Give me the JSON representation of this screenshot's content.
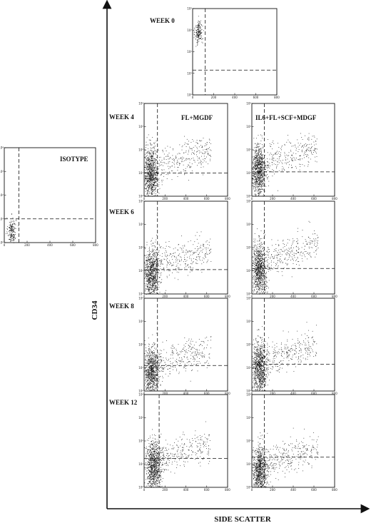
{
  "chart_data": {
    "type": "scatter",
    "axes": {
      "xlabel": "SIDE SCATTER",
      "ylabel": "CD34"
    },
    "x_ticks": [
      "0",
      "200",
      "400",
      "600",
      "800"
    ],
    "y_ticks": [
      "10⁰",
      "10¹",
      "10²",
      "10³",
      "10⁴"
    ],
    "xlim": [
      0,
      1000
    ],
    "ylim_log10": [
      0,
      4
    ],
    "columns": [
      "FL+MGDF",
      "IL6+FL+SCF+MDGF"
    ],
    "panels": [
      {
        "id": "isotype",
        "label": "ISOTYPE",
        "gate_x": 160,
        "gate_y_log": 1.0,
        "cluster": {
          "x_center": 80,
          "y_center_log": 0.5,
          "spread": "tight"
        }
      },
      {
        "id": "week0",
        "label": "WEEK 0",
        "gate_x": 150,
        "gate_y_log": 1.15,
        "cluster": {
          "x_center": 70,
          "y_center_log": 2.9,
          "spread": "tight"
        }
      },
      {
        "id": "week4-fl-mgdf",
        "label": "WEEK 4",
        "column": "FL+MGDF",
        "gate_x": 160,
        "gate_y_log": 1.0,
        "cluster": {
          "x_center": 80,
          "y_center_log": 1.0,
          "spread": "broad"
        }
      },
      {
        "id": "week4-il6",
        "column": "IL6+FL+SCF+MDGF",
        "gate_x": 150,
        "gate_y_log": 1.05,
        "cluster": {
          "x_center": 80,
          "y_center_log": 1.1,
          "spread": "broad"
        }
      },
      {
        "id": "week6-fl-mgdf",
        "label": "WEEK 6",
        "column": "FL+MGDF",
        "gate_x": 160,
        "gate_y_log": 1.05,
        "cluster": {
          "x_center": 90,
          "y_center_log": 0.9,
          "spread": "broad"
        }
      },
      {
        "id": "week6-il6",
        "column": "IL6+FL+SCF+MDGF",
        "gate_x": 150,
        "gate_y_log": 1.1,
        "cluster": {
          "x_center": 90,
          "y_center_log": 1.1,
          "spread": "broad"
        }
      },
      {
        "id": "week8-fl-mgdf",
        "label": "WEEK 8",
        "column": "FL+MGDF",
        "gate_x": 160,
        "gate_y_log": 1.1,
        "cluster": {
          "x_center": 90,
          "y_center_log": 0.8,
          "spread": "broad"
        }
      },
      {
        "id": "week8-il6",
        "column": "IL6+FL+SCF+MDGF",
        "gate_x": 150,
        "gate_y_log": 1.15,
        "cluster": {
          "x_center": 90,
          "y_center_log": 1.0,
          "spread": "broad"
        }
      },
      {
        "id": "week12-fl-mgdf",
        "label": "WEEK 12",
        "column": "FL+MGDF",
        "gate_x": 180,
        "gate_y_log": 1.25,
        "cluster": {
          "x_center": 110,
          "y_center_log": 0.9,
          "spread": "broad"
        }
      },
      {
        "id": "week12-il6",
        "column": "IL6+FL+SCF+MDGF",
        "gate_x": 150,
        "gate_y_log": 1.3,
        "cluster": {
          "x_center": 90,
          "y_center_log": 0.7,
          "spread": "broad"
        }
      }
    ],
    "legend": "none",
    "grid": false
  },
  "colors": {
    "ink": "#111111",
    "background": "#ffffff"
  }
}
